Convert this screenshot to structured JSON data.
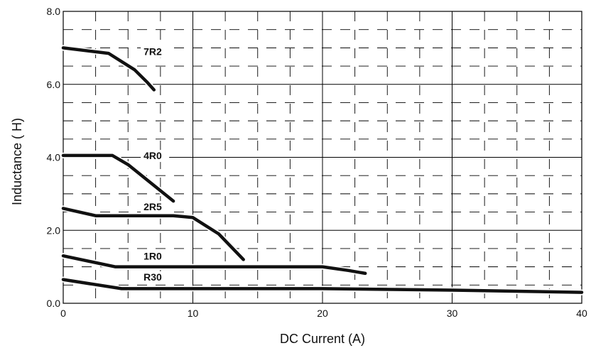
{
  "chart_data": {
    "type": "line",
    "xlabel": "DC Current (A)",
    "ylabel": "Inductance (   H)",
    "xlim": [
      0,
      40
    ],
    "ylim": [
      0,
      8
    ],
    "x_ticks": [
      0,
      10,
      20,
      30,
      40
    ],
    "x_tick_labels": [
      "0",
      "10",
      "20",
      "30",
      "40"
    ],
    "y_ticks": [
      0,
      2,
      4,
      6,
      8
    ],
    "y_tick_labels": [
      "0.0",
      "2.0",
      "4.0",
      "6.0",
      "8.0"
    ],
    "grid": "major solid, minor dashed",
    "series": [
      {
        "name": "7R2",
        "points": [
          [
            0,
            7.0
          ],
          [
            3.5,
            6.85
          ],
          [
            5.5,
            6.4
          ],
          [
            6.5,
            6.05
          ],
          [
            7.0,
            5.85
          ]
        ]
      },
      {
        "name": "4R0",
        "points": [
          [
            0,
            4.05
          ],
          [
            3.8,
            4.05
          ],
          [
            5.0,
            3.8
          ],
          [
            8.5,
            2.8
          ]
        ]
      },
      {
        "name": "2R5",
        "points": [
          [
            0,
            2.6
          ],
          [
            2.5,
            2.4
          ],
          [
            8.5,
            2.4
          ],
          [
            10.0,
            2.35
          ],
          [
            12.0,
            1.9
          ],
          [
            13.9,
            1.2
          ]
        ]
      },
      {
        "name": "1R0",
        "points": [
          [
            0,
            1.3
          ],
          [
            4.0,
            1.0
          ],
          [
            20.0,
            1.0
          ],
          [
            22.0,
            0.9
          ],
          [
            23.3,
            0.82
          ]
        ]
      },
      {
        "name": "R30",
        "points": [
          [
            0,
            0.65
          ],
          [
            4.5,
            0.4
          ],
          [
            20.0,
            0.4
          ],
          [
            30.0,
            0.36
          ],
          [
            40.0,
            0.3
          ]
        ]
      }
    ]
  }
}
